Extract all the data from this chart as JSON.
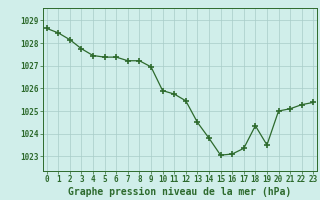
{
  "x": [
    0,
    1,
    2,
    3,
    4,
    5,
    6,
    7,
    8,
    9,
    10,
    11,
    12,
    13,
    14,
    15,
    16,
    17,
    18,
    19,
    20,
    21,
    22,
    23
  ],
  "y": [
    1028.65,
    1028.45,
    1028.15,
    1027.75,
    1027.45,
    1027.38,
    1027.38,
    1027.22,
    1027.22,
    1026.95,
    1025.9,
    1025.75,
    1025.45,
    1024.5,
    1023.8,
    1023.05,
    1023.1,
    1023.35,
    1024.35,
    1023.5,
    1025.0,
    1025.1,
    1025.28,
    1025.38
  ],
  "line_color": "#2d6a2d",
  "marker": "+",
  "marker_size": 4,
  "marker_linewidth": 1.2,
  "bg_color": "#d0eeea",
  "grid_color": "#a8ccc8",
  "title": "Graphe pression niveau de la mer (hPa)",
  "xlabel_ticks": [
    "0",
    "1",
    "2",
    "3",
    "4",
    "5",
    "6",
    "7",
    "8",
    "9",
    "10",
    "11",
    "12",
    "13",
    "14",
    "15",
    "16",
    "17",
    "18",
    "19",
    "20",
    "21",
    "22",
    "23"
  ],
  "ylabel_ticks": [
    1023,
    1024,
    1025,
    1026,
    1027,
    1028,
    1029
  ],
  "ylim": [
    1022.35,
    1029.55
  ],
  "xlim": [
    -0.3,
    23.3
  ],
  "tick_color": "#2d6a2d",
  "tick_fontsize": 5.5,
  "title_fontsize": 7.0,
  "axis_color": "#2d6a2d",
  "line_width": 0.9
}
